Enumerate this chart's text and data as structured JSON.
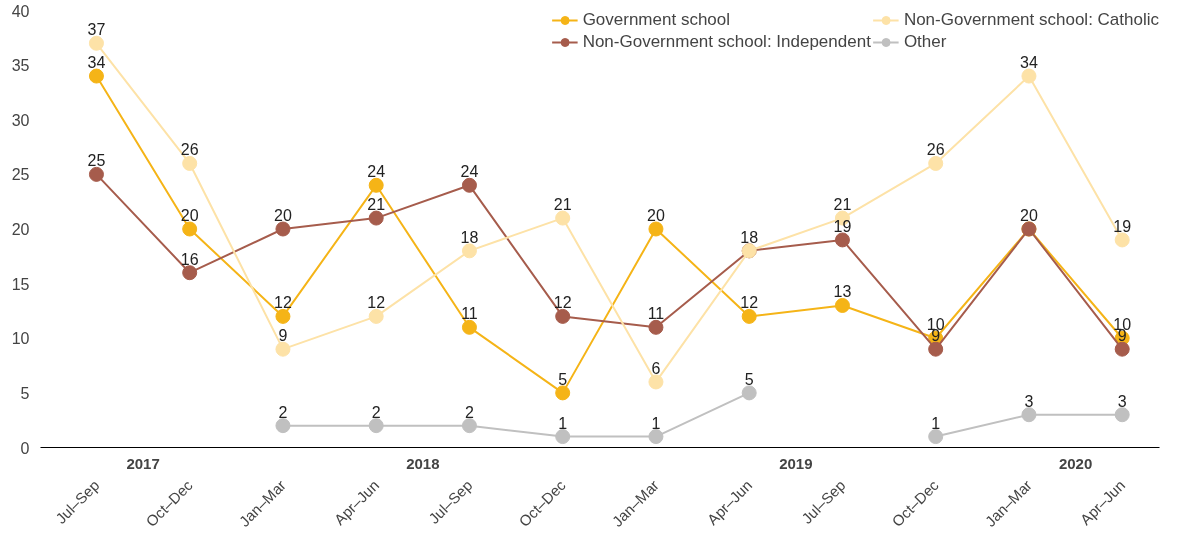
{
  "chart_data": {
    "type": "line",
    "categories": [
      "Jul–Sep",
      "Oct–Dec",
      "Jan–Mar",
      "Apr–Jun",
      "Jul–Sep",
      "Oct–Dec",
      "Jan–Mar",
      "Apr–Jun",
      "Jul–Sep",
      "Oct–Dec",
      "Jan–Mar",
      "Apr–Jun"
    ],
    "annotations": [
      "2017",
      "2018",
      "2019",
      "2020"
    ],
    "series": [
      {
        "name": "Government school",
        "color": "#f5b417",
        "values": [
          34,
          20,
          12,
          24,
          11,
          5,
          20,
          12,
          13,
          10,
          20,
          10
        ],
        "value_labels": [
          "34",
          "20",
          "12",
          "24",
          "11",
          "5",
          "20",
          "12",
          "13",
          "10",
          "20",
          "10"
        ]
      },
      {
        "name": "Non-Government school: Independent",
        "color": "#a65c4c",
        "values": [
          25,
          16,
          20,
          21,
          24,
          12,
          11,
          18,
          19,
          9,
          20,
          9
        ],
        "value_labels": [
          "25",
          "16",
          "20",
          "21",
          "24",
          "12",
          "11",
          "18",
          "19",
          "9",
          null,
          "9"
        ]
      },
      {
        "name": "Non-Government school: Catholic",
        "color": "#fde2a7",
        "values": [
          37,
          26,
          9,
          12,
          18,
          21,
          6,
          18,
          21,
          26,
          34,
          19
        ],
        "value_labels": [
          "37",
          "26",
          "9",
          "12",
          "18",
          "21",
          "6",
          null,
          "21",
          "26",
          "34",
          "19"
        ]
      },
      {
        "name": "Other",
        "color": "#c0c0c0",
        "values": [
          null,
          null,
          2,
          2,
          2,
          1,
          1,
          5,
          null,
          1,
          3,
          3
        ],
        "value_labels": [
          null,
          null,
          "2",
          "2",
          "2",
          "1",
          "1",
          "5",
          null,
          "1",
          "3",
          "3"
        ]
      }
    ],
    "ylim": [
      0,
      40
    ],
    "yticks": [
      0,
      5,
      10,
      15,
      20,
      25,
      30,
      35,
      40
    ],
    "legend": "top right",
    "marker": "circle",
    "line_style": "solid"
  }
}
